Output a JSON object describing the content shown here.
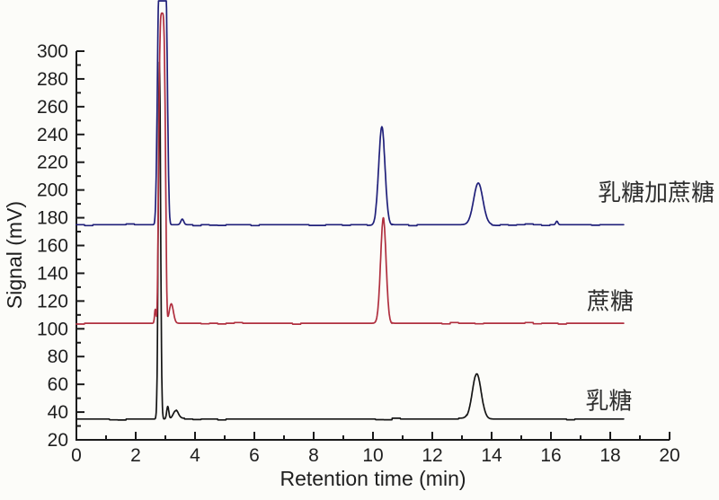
{
  "figure": {
    "background": "#fcfcf9",
    "axis_color": "#1a1a1a",
    "text_color": "#1f1f1f"
  },
  "chart_data": {
    "type": "line",
    "title": "",
    "xlabel": "Retention time (min)",
    "ylabel": "Signal (mV)",
    "xlim": [
      0,
      20
    ],
    "ylim": [
      20,
      300
    ],
    "x_major_ticks": [
      0,
      2,
      4,
      6,
      8,
      10,
      12,
      14,
      16,
      18,
      20
    ],
    "x_minor_ticks": [
      1,
      3,
      5,
      7,
      9,
      11,
      13,
      15,
      17,
      19
    ],
    "y_major_ticks": [
      20,
      40,
      60,
      80,
      100,
      120,
      140,
      160,
      180,
      200,
      220,
      240,
      260,
      280,
      300
    ],
    "y_minor_ticks": [
      30,
      50,
      70,
      90,
      110,
      130,
      150,
      170,
      190,
      210,
      230,
      250,
      270,
      290
    ],
    "grid": false,
    "legend_position": "labels-right-of-traces",
    "series": [
      {
        "id": "lactose-plus-sucrose",
        "label": "乳糖加蔗糖",
        "color": "#20207a",
        "baseline_mv": 175,
        "x_start_min": 0,
        "x_end_min": 18.45,
        "noise_mv": 0.9,
        "label_pos": {
          "x_min": 19.55,
          "y_mv": 198
        },
        "peaks": [
          {
            "retention_min": 2.9,
            "apex_mv": 400,
            "width_min": 0.18,
            "shape_power": 4,
            "clipped_top": true
          },
          {
            "retention_min": 3.57,
            "apex_mv": 179,
            "width_min": 0.07
          },
          {
            "retention_min": 10.3,
            "apex_mv": 245,
            "width_min": 0.15
          },
          {
            "retention_min": 13.55,
            "apex_mv": 205,
            "width_min": 0.22
          },
          {
            "retention_min": 16.2,
            "apex_mv": 177.5,
            "width_min": 0.05
          }
        ]
      },
      {
        "id": "sucrose",
        "label": "蔗糖",
        "color": "#b02f3f",
        "baseline_mv": 104,
        "x_start_min": 0,
        "x_end_min": 18.45,
        "noise_mv": 0.9,
        "label_pos": {
          "x_min": 18.0,
          "y_mv": 120
        },
        "peaks": [
          {
            "retention_min": 2.66,
            "apex_mv": 114,
            "width_min": 0.035
          },
          {
            "retention_min": 2.89,
            "apex_mv": 328,
            "width_min": 0.13,
            "shape_power": 4
          },
          {
            "retention_min": 3.2,
            "apex_mv": 118,
            "width_min": 0.1
          },
          {
            "retention_min": 10.35,
            "apex_mv": 180,
            "width_min": 0.13
          }
        ]
      },
      {
        "id": "lactose",
        "label": "乳糖",
        "color": "#151515",
        "baseline_mv": 35,
        "x_start_min": 0,
        "x_end_min": 18.45,
        "noise_mv": 1.0,
        "label_pos": {
          "x_min": 17.95,
          "y_mv": 48
        },
        "peaks": [
          {
            "retention_min": 2.8,
            "apex_mv": 292,
            "width_min": 0.055
          },
          {
            "retention_min": 3.08,
            "apex_mv": 44,
            "width_min": 0.05
          },
          {
            "retention_min": 3.35,
            "apex_mv": 41,
            "width_min": 0.12
          },
          {
            "retention_min": 13.5,
            "apex_mv": 68,
            "width_min": 0.21
          }
        ]
      }
    ]
  }
}
